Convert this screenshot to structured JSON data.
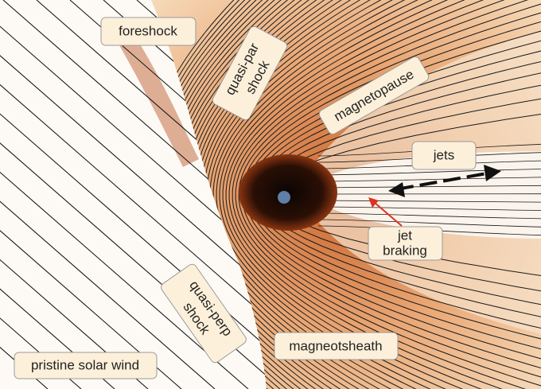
{
  "labels": {
    "foreshock": "foreshock",
    "quasi_par_shock": [
      "quasi-par",
      "shock"
    ],
    "magnetopause": "magnetopause",
    "jets": "jets",
    "jet_braking": [
      "jet",
      "braking"
    ],
    "quasi_perp_shock": [
      "quasi-perp",
      "shock"
    ],
    "magnetosheath": "magneotsheath",
    "pristine_solar_wind": "pristine solar wind"
  }
}
